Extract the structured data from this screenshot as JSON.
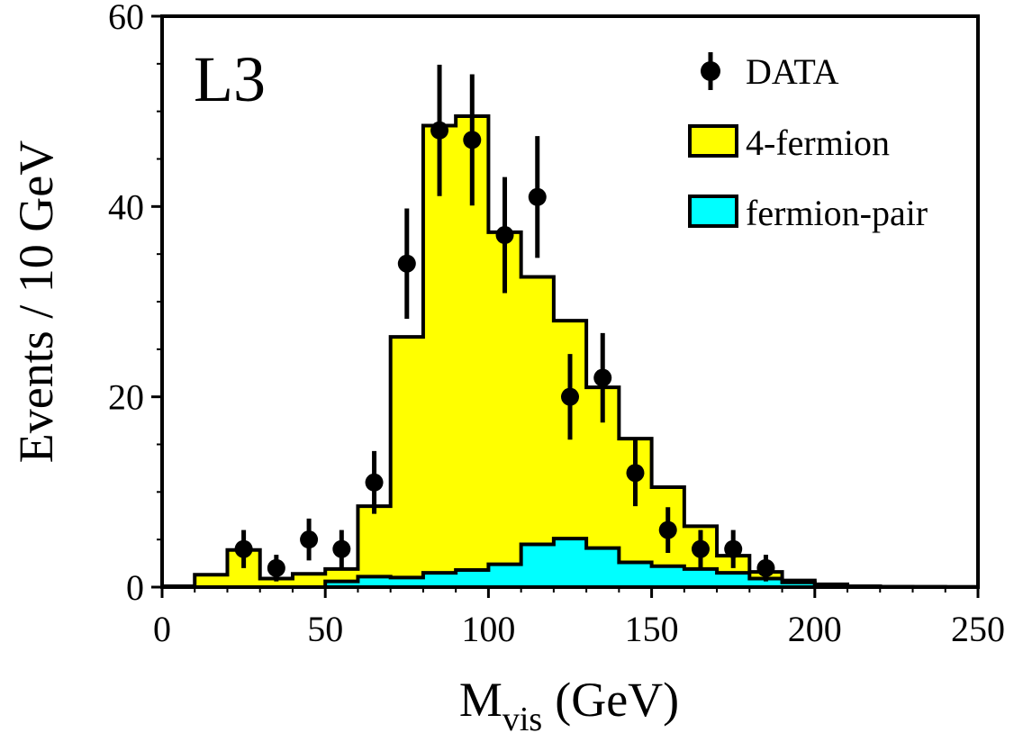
{
  "chart_data": {
    "type": "bar",
    "experiment_label": "L3",
    "xlabel": "M",
    "xlabel_sub": "vis",
    "xlabel_unit": "(GeV)",
    "ylabel": "Events / 10 GeV",
    "xlim": [
      0,
      250
    ],
    "ylim": [
      0,
      60
    ],
    "x_ticks": [
      0,
      50,
      100,
      150,
      200,
      250
    ],
    "y_ticks": [
      0,
      20,
      40,
      60
    ],
    "legend_position": "top-right",
    "bin_edges": [
      0,
      10,
      20,
      30,
      40,
      50,
      60,
      70,
      80,
      90,
      100,
      110,
      120,
      130,
      140,
      150,
      160,
      170,
      180,
      190,
      200,
      210,
      220,
      230,
      240,
      250
    ],
    "series": [
      {
        "name": "4-fermion",
        "kind": "stacked-histogram",
        "color": "#ffff00",
        "values": [
          0.1,
          1.3,
          3.9,
          0.9,
          1.4,
          1.9,
          8.5,
          26.3,
          48.5,
          49.5,
          37.3,
          32.6,
          28.0,
          21.0,
          15.6,
          10.5,
          6.4,
          3.3,
          1.6,
          0.7,
          0.3,
          0.1,
          0.05,
          0.03,
          0.02
        ]
      },
      {
        "name": "fermion-pair",
        "kind": "histogram",
        "color": "#00ffff",
        "values": [
          0.0,
          0.0,
          0.0,
          0.0,
          0.0,
          0.6,
          1.1,
          1.0,
          1.5,
          1.8,
          2.4,
          4.5,
          5.1,
          4.1,
          2.6,
          2.2,
          1.9,
          1.5,
          0.9,
          0.5,
          0.2,
          0.1,
          0.05,
          0.02,
          0.01
        ]
      },
      {
        "name": "DATA",
        "kind": "points",
        "color": "#000000",
        "x": [
          25,
          35,
          45,
          55,
          65,
          75,
          85,
          95,
          105,
          115,
          125,
          135,
          145,
          155,
          165,
          175,
          185
        ],
        "y": [
          4,
          2,
          5,
          4,
          11,
          34,
          48,
          47,
          37,
          41,
          20,
          22,
          12,
          6,
          4,
          4,
          2
        ],
        "err": [
          2.0,
          1.4,
          2.2,
          2.0,
          3.3,
          5.8,
          6.9,
          6.9,
          6.1,
          6.4,
          4.5,
          4.7,
          3.5,
          2.4,
          2.0,
          2.0,
          1.4
        ]
      }
    ]
  }
}
